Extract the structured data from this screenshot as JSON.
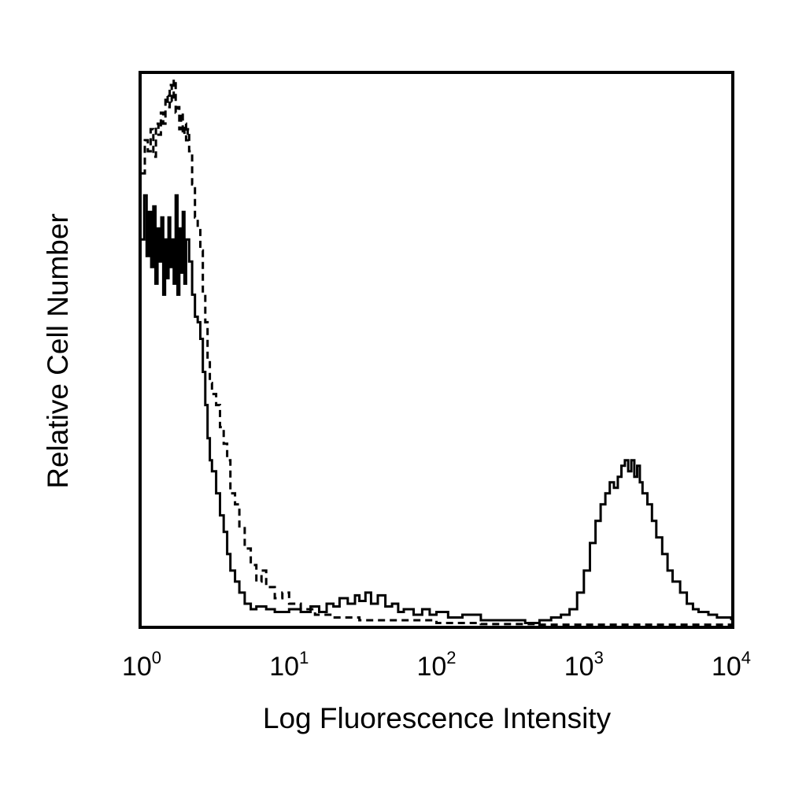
{
  "chart_data": {
    "type": "line",
    "title": "",
    "xlabel": "Log Fluorescence Intensity",
    "ylabel": "Relative Cell Number",
    "x_scale": "log",
    "xlim": [
      1,
      10000
    ],
    "ylim": [
      0,
      100
    ],
    "grid": false,
    "legend": "none",
    "x_ticks": [
      {
        "base": "10",
        "exp": "0",
        "value": 1
      },
      {
        "base": "10",
        "exp": "1",
        "value": 10
      },
      {
        "base": "10",
        "exp": "2",
        "value": 100
      },
      {
        "base": "10",
        "exp": "3",
        "value": 1000
      },
      {
        "base": "10",
        "exp": "4",
        "value": 10000
      }
    ],
    "series": [
      {
        "style": "dashed",
        "color": "#000000",
        "points": [
          [
            1.0,
            82
          ],
          [
            1.05,
            88
          ],
          [
            1.1,
            86
          ],
          [
            1.15,
            90
          ],
          [
            1.2,
            85
          ],
          [
            1.25,
            91
          ],
          [
            1.3,
            89
          ],
          [
            1.35,
            93
          ],
          [
            1.4,
            91
          ],
          [
            1.45,
            96
          ],
          [
            1.5,
            94
          ],
          [
            1.55,
            98
          ],
          [
            1.6,
            95
          ],
          [
            1.65,
            99
          ],
          [
            1.7,
            93
          ],
          [
            1.75,
            94
          ],
          [
            1.8,
            90
          ],
          [
            1.85,
            93
          ],
          [
            1.9,
            89
          ],
          [
            1.95,
            91
          ],
          [
            2.0,
            88
          ],
          [
            2.05,
            90
          ],
          [
            2.1,
            86
          ],
          [
            2.2,
            80
          ],
          [
            2.3,
            74
          ],
          [
            2.4,
            72
          ],
          [
            2.5,
            68
          ],
          [
            2.6,
            60
          ],
          [
            2.7,
            55
          ],
          [
            2.8,
            48
          ],
          [
            2.9,
            44
          ],
          [
            3.0,
            42
          ],
          [
            3.2,
            40
          ],
          [
            3.4,
            36
          ],
          [
            3.6,
            33
          ],
          [
            3.8,
            30
          ],
          [
            4.0,
            24
          ],
          [
            4.3,
            22
          ],
          [
            4.6,
            18
          ],
          [
            5.0,
            14
          ],
          [
            5.5,
            11
          ],
          [
            6.0,
            8
          ],
          [
            6.5,
            10
          ],
          [
            7.0,
            7
          ],
          [
            8.0,
            5
          ],
          [
            9.0,
            6
          ],
          [
            10,
            4
          ],
          [
            12,
            3
          ],
          [
            15,
            2
          ],
          [
            20,
            1.5
          ],
          [
            30,
            1
          ],
          [
            50,
            1
          ],
          [
            100,
            0.5
          ],
          [
            200,
            0.3
          ],
          [
            500,
            0.2
          ],
          [
            1000,
            0.2
          ],
          [
            10000,
            0.2
          ]
        ]
      },
      {
        "style": "solid",
        "color": "#000000",
        "points": [
          [
            1.0,
            70
          ],
          [
            1.04,
            78
          ],
          [
            1.08,
            67
          ],
          [
            1.12,
            75
          ],
          [
            1.16,
            65
          ],
          [
            1.2,
            76
          ],
          [
            1.24,
            62
          ],
          [
            1.28,
            72
          ],
          [
            1.32,
            66
          ],
          [
            1.36,
            74
          ],
          [
            1.4,
            60
          ],
          [
            1.44,
            70
          ],
          [
            1.48,
            63
          ],
          [
            1.52,
            74
          ],
          [
            1.56,
            65
          ],
          [
            1.6,
            70
          ],
          [
            1.65,
            62
          ],
          [
            1.7,
            78
          ],
          [
            1.75,
            60
          ],
          [
            1.8,
            72
          ],
          [
            1.85,
            64
          ],
          [
            1.9,
            75
          ],
          [
            1.95,
            62
          ],
          [
            2.0,
            70
          ],
          [
            2.1,
            66
          ],
          [
            2.2,
            60
          ],
          [
            2.3,
            56
          ],
          [
            2.4,
            55
          ],
          [
            2.5,
            52
          ],
          [
            2.6,
            46
          ],
          [
            2.7,
            40
          ],
          [
            2.8,
            34
          ],
          [
            2.9,
            30
          ],
          [
            3.0,
            28
          ],
          [
            3.2,
            24
          ],
          [
            3.4,
            20
          ],
          [
            3.6,
            17
          ],
          [
            3.8,
            13
          ],
          [
            4.0,
            10
          ],
          [
            4.3,
            8
          ],
          [
            4.6,
            6
          ],
          [
            5.0,
            4
          ],
          [
            5.5,
            3
          ],
          [
            6.0,
            3.5
          ],
          [
            7.0,
            3
          ],
          [
            8.0,
            2.5
          ],
          [
            10,
            3
          ],
          [
            12,
            2.5
          ],
          [
            14,
            3.5
          ],
          [
            16,
            2.5
          ],
          [
            18,
            4
          ],
          [
            20,
            3.5
          ],
          [
            22,
            5
          ],
          [
            25,
            4
          ],
          [
            28,
            5.5
          ],
          [
            30,
            4.5
          ],
          [
            33,
            6
          ],
          [
            36,
            4
          ],
          [
            40,
            5.5
          ],
          [
            45,
            3.5
          ],
          [
            50,
            4
          ],
          [
            55,
            2.5
          ],
          [
            60,
            3
          ],
          [
            70,
            2
          ],
          [
            80,
            3
          ],
          [
            90,
            2
          ],
          [
            100,
            2.5
          ],
          [
            120,
            1.5
          ],
          [
            150,
            2
          ],
          [
            200,
            1
          ],
          [
            300,
            1
          ],
          [
            400,
            0.5
          ],
          [
            500,
            1
          ],
          [
            600,
            1.5
          ],
          [
            700,
            2
          ],
          [
            800,
            3
          ],
          [
            900,
            6
          ],
          [
            1000,
            10
          ],
          [
            1100,
            15
          ],
          [
            1200,
            19
          ],
          [
            1300,
            22
          ],
          [
            1400,
            24
          ],
          [
            1500,
            26
          ],
          [
            1600,
            25
          ],
          [
            1700,
            27
          ],
          [
            1800,
            29
          ],
          [
            1900,
            30
          ],
          [
            2000,
            28
          ],
          [
            2100,
            30
          ],
          [
            2200,
            27
          ],
          [
            2300,
            29
          ],
          [
            2400,
            26
          ],
          [
            2500,
            24
          ],
          [
            2700,
            22
          ],
          [
            2900,
            19
          ],
          [
            3100,
            16
          ],
          [
            3400,
            13
          ],
          [
            3700,
            10
          ],
          [
            4000,
            8
          ],
          [
            4500,
            6
          ],
          [
            5000,
            4
          ],
          [
            5500,
            3
          ],
          [
            6000,
            2.5
          ],
          [
            7000,
            2
          ],
          [
            8000,
            1.5
          ],
          [
            10000,
            1
          ]
        ]
      }
    ]
  }
}
